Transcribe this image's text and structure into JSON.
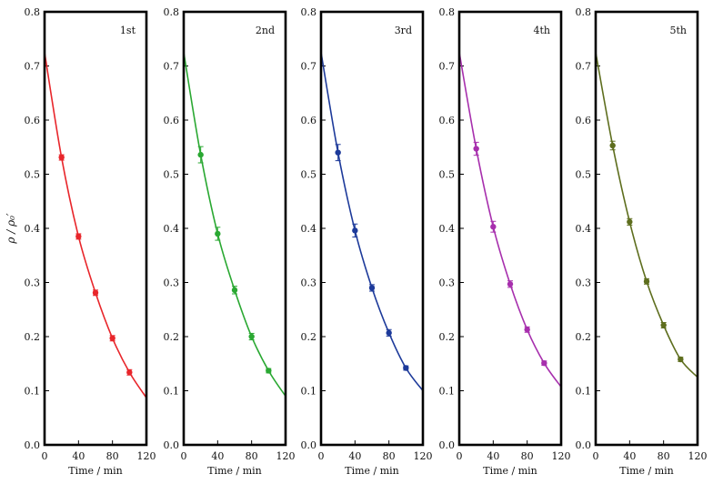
{
  "chart_data": [
    {
      "type": "line",
      "panel_label": "1st",
      "xlabel": "Time / min",
      "ylabel": "ρ / ρ₀′",
      "xlim": [
        0,
        120
      ],
      "ylim": [
        0.0,
        0.8
      ],
      "x_ticks": [
        "0",
        "40",
        "80",
        "120"
      ],
      "y_ticks": [
        "0.0",
        "0.1",
        "0.2",
        "0.3",
        "0.4",
        "0.5",
        "0.6",
        "0.7",
        "0.8"
      ],
      "color": "#e8262b",
      "x": [
        0,
        20,
        40,
        60,
        80,
        100,
        120
      ],
      "y": [
        0.725,
        0.531,
        0.385,
        0.281,
        0.197,
        0.134,
        0.087
      ],
      "errors": [
        0.0,
        0.005,
        0.005,
        0.005,
        0.005,
        0.005,
        0.0
      ]
    },
    {
      "type": "line",
      "panel_label": "2nd",
      "xlabel": "Time / min",
      "xlim": [
        0,
        120
      ],
      "ylim": [
        0.0,
        0.8
      ],
      "x_ticks": [
        "0",
        "40",
        "80",
        "120"
      ],
      "y_ticks": [
        "0.0",
        "0.1",
        "0.2",
        "0.3",
        "0.4",
        "0.5",
        "0.6",
        "0.7",
        "0.8"
      ],
      "color": "#2aa832",
      "x": [
        0,
        20,
        40,
        60,
        80,
        100,
        120
      ],
      "y": [
        0.725,
        0.536,
        0.39,
        0.286,
        0.2,
        0.137,
        0.09
      ],
      "errors": [
        0.0,
        0.015,
        0.012,
        0.007,
        0.006,
        0.004,
        0.0
      ]
    },
    {
      "type": "line",
      "panel_label": "3rd",
      "xlabel": "Time / min",
      "xlim": [
        0,
        120
      ],
      "ylim": [
        0.0,
        0.8
      ],
      "x_ticks": [
        "0",
        "40",
        "80",
        "120"
      ],
      "y_ticks": [
        "0.0",
        "0.1",
        "0.2",
        "0.3",
        "0.4",
        "0.5",
        "0.6",
        "0.7",
        "0.8"
      ],
      "color": "#1d3a9a",
      "x": [
        0,
        20,
        40,
        60,
        80,
        100,
        120
      ],
      "y": [
        0.725,
        0.54,
        0.396,
        0.29,
        0.207,
        0.142,
        0.1
      ],
      "errors": [
        0.0,
        0.015,
        0.012,
        0.006,
        0.006,
        0.004,
        0.0
      ]
    },
    {
      "type": "line",
      "panel_label": "4th",
      "xlabel": "Time / min",
      "xlim": [
        0,
        120
      ],
      "ylim": [
        0.0,
        0.8
      ],
      "x_ticks": [
        "0",
        "40",
        "80",
        "120"
      ],
      "y_ticks": [
        "0.0",
        "0.1",
        "0.2",
        "0.3",
        "0.4",
        "0.5",
        "0.6",
        "0.7",
        "0.8"
      ],
      "color": "#a72fad",
      "x": [
        0,
        20,
        40,
        60,
        80,
        100,
        120
      ],
      "y": [
        0.725,
        0.547,
        0.403,
        0.297,
        0.213,
        0.151,
        0.107
      ],
      "errors": [
        0.0,
        0.012,
        0.01,
        0.006,
        0.005,
        0.004,
        0.0
      ]
    },
    {
      "type": "line",
      "panel_label": "5th",
      "xlabel": "Time / min",
      "xlim": [
        0,
        120
      ],
      "ylim": [
        0.0,
        0.8
      ],
      "x_ticks": [
        "0",
        "40",
        "80",
        "120"
      ],
      "y_ticks": [
        "0.0",
        "0.1",
        "0.2",
        "0.3",
        "0.4",
        "0.5",
        "0.6",
        "0.7",
        "0.8"
      ],
      "color": "#5e6e1e",
      "x": [
        0,
        20,
        40,
        60,
        80,
        100,
        120
      ],
      "y": [
        0.725,
        0.553,
        0.412,
        0.302,
        0.221,
        0.158,
        0.125
      ],
      "errors": [
        0.0,
        0.008,
        0.006,
        0.005,
        0.005,
        0.004,
        0.0
      ]
    }
  ]
}
